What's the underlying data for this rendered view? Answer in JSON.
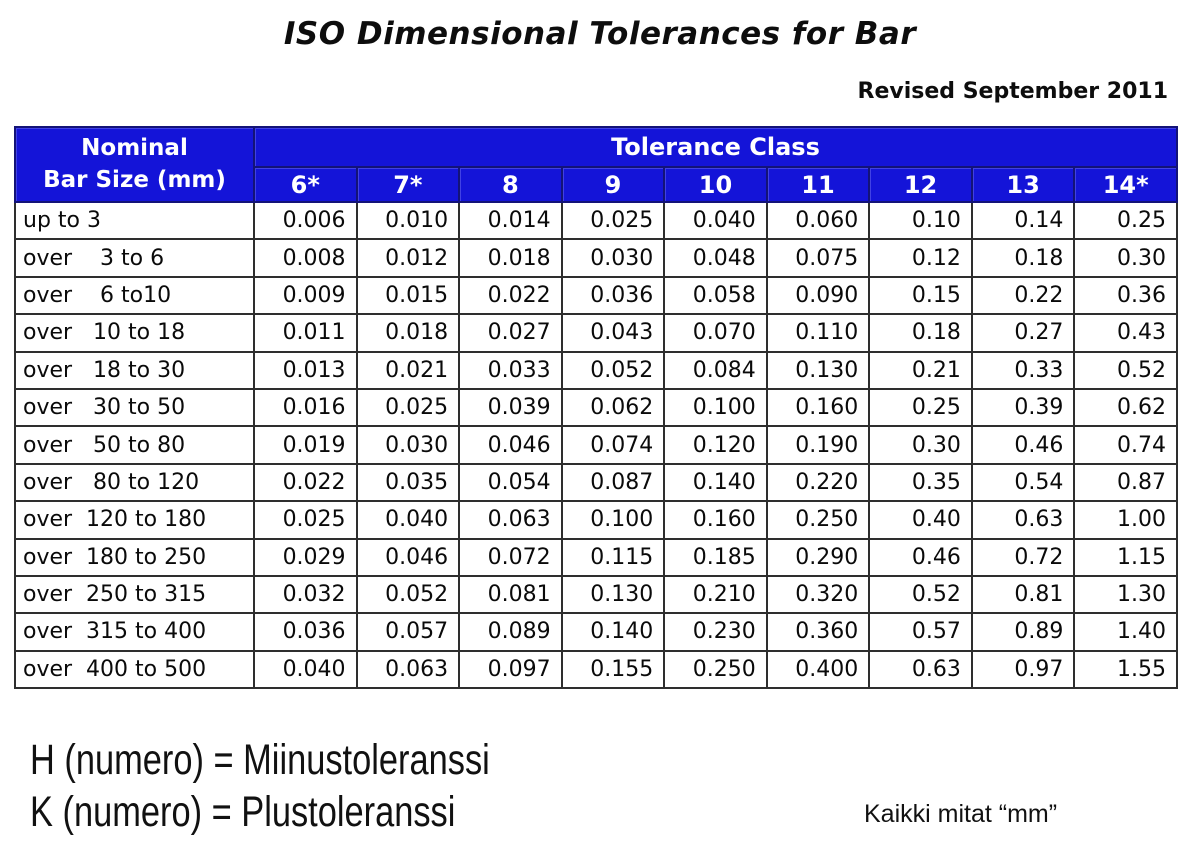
{
  "title": "ISO Dimensional Tolerances for Bar",
  "revised": "Revised September 2011",
  "colors": {
    "header_blue": "#1414d8",
    "header_border_navy": "#131378",
    "grid_line": "#2e2e2e",
    "header_text": "#ffffff",
    "body_text": "#0a0a0a"
  },
  "table": {
    "corner_header_line1": "Nominal",
    "corner_header_line2": "Bar Size (mm)",
    "group_header": "Tolerance Class",
    "columns": [
      "6*",
      "7*",
      "8",
      "9",
      "10",
      "11",
      "12",
      "13",
      "14*"
    ],
    "rows": [
      {
        "label": "up to 3",
        "values": [
          "0.006",
          "0.010",
          "0.014",
          "0.025",
          "0.040",
          "0.060",
          "0.10",
          "0.14",
          "0.25"
        ]
      },
      {
        "label": "over    3 to 6",
        "values": [
          "0.008",
          "0.012",
          "0.018",
          "0.030",
          "0.048",
          "0.075",
          "0.12",
          "0.18",
          "0.30"
        ]
      },
      {
        "label": "over    6 to10",
        "values": [
          "0.009",
          "0.015",
          "0.022",
          "0.036",
          "0.058",
          "0.090",
          "0.15",
          "0.22",
          "0.36"
        ]
      },
      {
        "label": "over   10 to 18",
        "values": [
          "0.011",
          "0.018",
          "0.027",
          "0.043",
          "0.070",
          "0.110",
          "0.18",
          "0.27",
          "0.43"
        ]
      },
      {
        "label": "over   18 to 30",
        "values": [
          "0.013",
          "0.021",
          "0.033",
          "0.052",
          "0.084",
          "0.130",
          "0.21",
          "0.33",
          "0.52"
        ]
      },
      {
        "label": "over   30 to 50",
        "values": [
          "0.016",
          "0.025",
          "0.039",
          "0.062",
          "0.100",
          "0.160",
          "0.25",
          "0.39",
          "0.62"
        ]
      },
      {
        "label": "over   50 to 80",
        "values": [
          "0.019",
          "0.030",
          "0.046",
          "0.074",
          "0.120",
          "0.190",
          "0.30",
          "0.46",
          "0.74"
        ]
      },
      {
        "label": "over   80 to 120",
        "values": [
          "0.022",
          "0.035",
          "0.054",
          "0.087",
          "0.140",
          "0.220",
          "0.35",
          "0.54",
          "0.87"
        ]
      },
      {
        "label": "over  120 to 180",
        "values": [
          "0.025",
          "0.040",
          "0.063",
          "0.100",
          "0.160",
          "0.250",
          "0.40",
          "0.63",
          "1.00"
        ]
      },
      {
        "label": "over  180 to 250",
        "values": [
          "0.029",
          "0.046",
          "0.072",
          "0.115",
          "0.185",
          "0.290",
          "0.46",
          "0.72",
          "1.15"
        ]
      },
      {
        "label": "over  250 to 315",
        "values": [
          "0.032",
          "0.052",
          "0.081",
          "0.130",
          "0.210",
          "0.320",
          "0.52",
          "0.81",
          "1.30"
        ]
      },
      {
        "label": "over  315 to 400",
        "values": [
          "0.036",
          "0.057",
          "0.089",
          "0.140",
          "0.230",
          "0.360",
          "0.57",
          "0.89",
          "1.40"
        ]
      },
      {
        "label": "over  400 to 500",
        "values": [
          "0.040",
          "0.063",
          "0.097",
          "0.155",
          "0.250",
          "0.400",
          "0.63",
          "0.97",
          "1.55"
        ]
      }
    ]
  },
  "footer": {
    "line1": "H (numero) = Miinustoleranssi",
    "line2": "K (numero) = Plustoleranssi",
    "units_note": "Kaikki mitat “mm”"
  }
}
